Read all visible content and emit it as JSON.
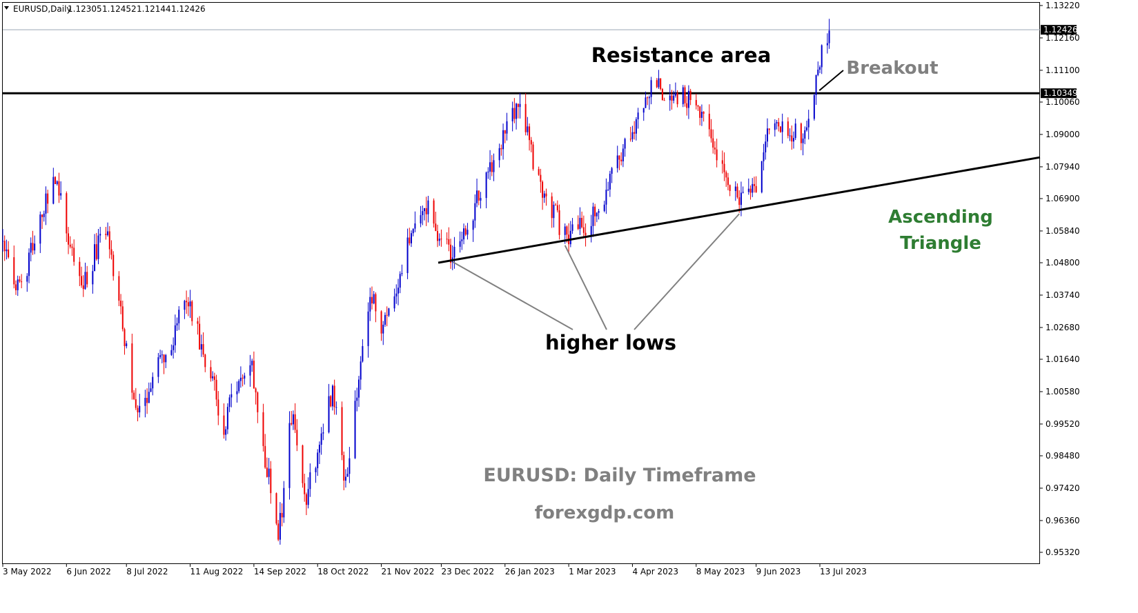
{
  "header": {
    "symbol": "EURUSD,Daily",
    "open": "1.12305",
    "high": "1.12452",
    "low": "1.12144",
    "close": "1.12426"
  },
  "y_axis": {
    "ticks": [
      "1.13220",
      "1.12160",
      "1.11100",
      "1.10060",
      "1.09000",
      "1.07940",
      "1.06900",
      "1.05840",
      "1.04800",
      "1.03740",
      "1.02680",
      "1.01640",
      "1.00580",
      "0.99520",
      "0.98480",
      "0.97420",
      "0.96360",
      "0.95320"
    ],
    "current_price": "1.12426",
    "resistance_price": "1.10349"
  },
  "x_axis": {
    "ticks": [
      "3 May 2022",
      "6 Jun 2022",
      "8 Jul 2022",
      "11 Aug 2022",
      "14 Sep 2022",
      "18 Oct 2022",
      "21 Nov 2022",
      "23 Dec 2022",
      "26 Jan 2023",
      "1 Mar 2023",
      "4 Apr 2023",
      "8 May 2023",
      "9 Jun 2023",
      "13 Jul 2023"
    ]
  },
  "annotations": {
    "resistance_area": "Resistance area",
    "breakout": "Breakout",
    "ascending_triangle_line1": "Ascending",
    "ascending_triangle_line2": "Triangle",
    "higher_lows": "higher lows",
    "timeframe": "EURUSD: Daily Timeframe",
    "website": "forexgdp.com"
  },
  "colors": {
    "bull": "#0000cc",
    "bear": "#ee0000",
    "line": "#000000",
    "gray_text": "#808080",
    "green_text": "#2e7d32",
    "pointer": "#808080"
  },
  "chart_data": {
    "type": "candlestick",
    "symbol": "EURUSD",
    "timeframe": "Daily",
    "ylim": [
      0.95,
      1.134
    ],
    "x_ticks": [
      "3 May 2022",
      "6 Jun 2022",
      "8 Jul 2022",
      "11 Aug 2022",
      "14 Sep 2022",
      "18 Oct 2022",
      "21 Nov 2022",
      "23 Dec 2022",
      "26 Jan 2023",
      "1 Mar 2023",
      "4 Apr 2023",
      "8 May 2023",
      "9 Jun 2023",
      "13 Jul 2023"
    ],
    "resistance_level": 1.10349,
    "last_price": 1.12426,
    "support_trendline": [
      {
        "date": "28 Dec 2022",
        "value": 1.048
      },
      {
        "date": "end of chart",
        "value": 1.0825
      }
    ],
    "higher_lows": [
      {
        "date": "29 Dec 2022",
        "value": 1.0483
      },
      {
        "date": "27 Feb 2023",
        "value": 1.0537
      },
      {
        "date": "31 May 2023",
        "value": 1.064
      }
    ],
    "close_path": [
      {
        "date": "3 May 2022",
        "value": 1.053
      },
      {
        "date": "12 May 2022",
        "value": 1.038
      },
      {
        "date": "30 May 2022",
        "value": 1.077
      },
      {
        "date": "14 Jun 2022",
        "value": 1.04
      },
      {
        "date": "27 Jun 2022",
        "value": 1.059
      },
      {
        "date": "14 Jul 2022",
        "value": 0.998
      },
      {
        "date": "10 Aug 2022",
        "value": 1.036
      },
      {
        "date": "29 Aug 2022",
        "value": 0.995
      },
      {
        "date": "12 Sep 2022",
        "value": 1.018
      },
      {
        "date": "27 Sep 2022",
        "value": 0.956
      },
      {
        "date": "4 Oct 2022",
        "value": 0.999
      },
      {
        "date": "12 Oct 2022",
        "value": 0.971
      },
      {
        "date": "26 Oct 2022",
        "value": 1.006
      },
      {
        "date": "2 Nov 2022",
        "value": 0.974
      },
      {
        "date": "15 Nov 2022",
        "value": 1.04
      },
      {
        "date": "21 Nov 2022",
        "value": 1.027
      },
      {
        "date": "13 Dec 2022",
        "value": 1.068
      },
      {
        "date": "29 Dec 2022",
        "value": 1.049
      },
      {
        "date": "26 Jan 2023",
        "value": 1.09
      },
      {
        "date": "2 Feb 2023",
        "value": 1.101
      },
      {
        "date": "15 Feb 2023",
        "value": 1.07
      },
      {
        "date": "1 Mar 2023",
        "value": 1.056
      },
      {
        "date": "15 Mar 2023",
        "value": 1.063
      },
      {
        "date": "4 Apr 2023",
        "value": 1.09
      },
      {
        "date": "14 Apr 2023",
        "value": 1.106
      },
      {
        "date": "26 Apr 2023",
        "value": 1.104
      },
      {
        "date": "8 May 2023",
        "value": 1.1
      },
      {
        "date": "31 May 2023",
        "value": 1.067
      },
      {
        "date": "9 Jun 2023",
        "value": 1.075
      },
      {
        "date": "16 Jun 2023",
        "value": 1.094
      },
      {
        "date": "6 Jul 2023",
        "value": 1.089
      },
      {
        "date": "12 Jul 2023",
        "value": 1.113
      },
      {
        "date": "18 Jul 2023",
        "value": 1.124
      }
    ]
  }
}
